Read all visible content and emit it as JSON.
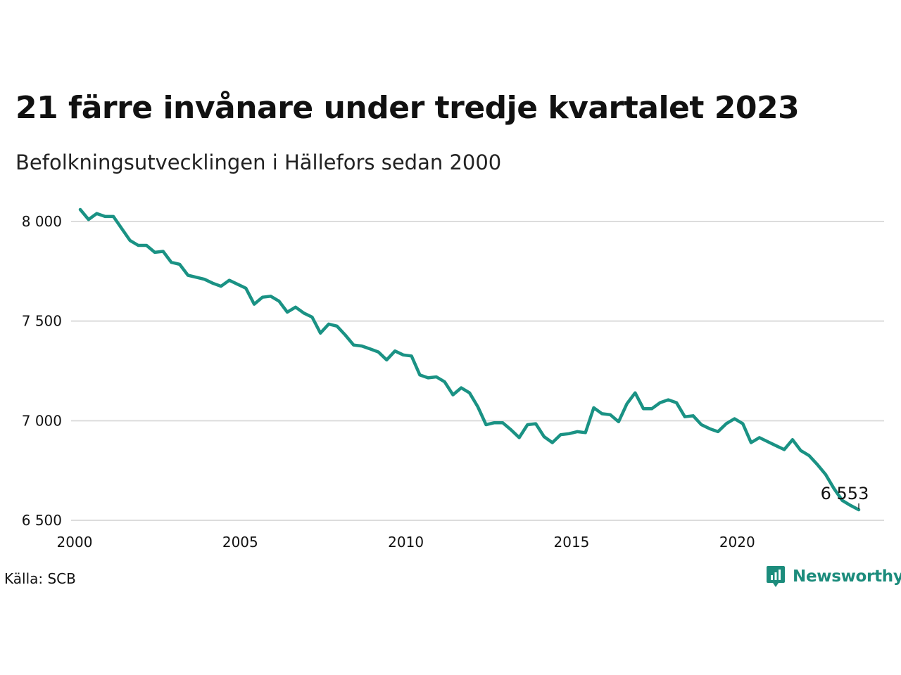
{
  "title": "21 färre invånare under tredje kvartalet 2023",
  "subtitle": "Befolkningsutvecklingen i Hällefors sedan 2000",
  "source": "Källa: SCB",
  "brand": {
    "name": "Newsworthy",
    "icon": "newsworthy-logo-icon",
    "color": "#1c8c7c"
  },
  "colors": {
    "line": "#1a9284",
    "grid": "#dcdcdc"
  },
  "chart_data": {
    "type": "line",
    "title": "21 färre invånare under tredje kvartalet 2023",
    "subtitle": "Befolkningsutvecklingen i Hällefors sedan 2000",
    "xlabel": "",
    "ylabel": "",
    "xlim": [
      2000,
      2024.1
    ],
    "ylim": [
      6500,
      8080
    ],
    "grid": true,
    "legend": "none",
    "x_ticks": [
      2000,
      2005,
      2010,
      2015,
      2020
    ],
    "x_tick_labels": [
      "2000",
      "2005",
      "2010",
      "2015",
      "2020"
    ],
    "y_ticks": [
      6500,
      7000,
      7500,
      8000
    ],
    "y_tick_labels": [
      "6 500",
      "7 000",
      "7 500",
      "8 000"
    ],
    "end_label": "6 553",
    "series": [
      {
        "x": [
          2000.0,
          2000.25,
          2000.5,
          2000.75,
          2001.0,
          2001.25,
          2001.5,
          2001.75,
          2002.0,
          2002.25,
          2002.5,
          2002.75,
          2003.0,
          2003.25,
          2003.5,
          2003.75,
          2004.0,
          2004.25,
          2004.5,
          2004.75,
          2005.0,
          2005.25,
          2005.5,
          2005.75,
          2006.0,
          2006.25,
          2006.5,
          2006.75,
          2007.0,
          2007.25,
          2007.5,
          2007.75,
          2008.0,
          2008.25,
          2008.5,
          2008.75,
          2009.0,
          2009.25,
          2009.5,
          2009.75,
          2010.0,
          2010.25,
          2010.5,
          2010.75,
          2011.0,
          2011.25,
          2011.5,
          2011.75,
          2012.0,
          2012.25,
          2012.5,
          2012.75,
          2013.0,
          2013.25,
          2013.5,
          2013.75,
          2014.0,
          2014.25,
          2014.5,
          2014.75,
          2015.0,
          2015.25,
          2015.5,
          2015.75,
          2016.0,
          2016.25,
          2016.5,
          2016.75,
          2017.0,
          2017.25,
          2017.5,
          2017.75,
          2018.0,
          2018.25,
          2018.5,
          2018.75,
          2019.0,
          2019.25,
          2019.5,
          2019.75,
          2020.0,
          2020.25,
          2020.5,
          2020.75,
          2021.0,
          2021.25,
          2021.5,
          2021.75,
          2022.0,
          2022.25,
          2022.5,
          2022.75,
          2023.0,
          2023.25,
          2023.5
        ],
        "values": [
          8060,
          8010,
          8040,
          8025,
          8025,
          7965,
          7905,
          7880,
          7880,
          7845,
          7850,
          7795,
          7785,
          7730,
          7720,
          7710,
          7690,
          7675,
          7705,
          7685,
          7665,
          7585,
          7620,
          7625,
          7600,
          7545,
          7570,
          7540,
          7520,
          7440,
          7485,
          7475,
          7430,
          7380,
          7375,
          7360,
          7345,
          7305,
          7350,
          7330,
          7325,
          7230,
          7215,
          7220,
          7195,
          7130,
          7165,
          7140,
          7070,
          6980,
          6990,
          6990,
          6955,
          6915,
          6980,
          6985,
          6920,
          6890,
          6930,
          6935,
          6945,
          6940,
          7065,
          7035,
          7030,
          6995,
          7085,
          7140,
          7060,
          7060,
          7090,
          7105,
          7090,
          7020,
          7025,
          6980,
          6960,
          6945,
          6985,
          7010,
          6985,
          6890,
          6915,
          6895,
          6875,
          6855,
          6905,
          6850,
          6825,
          6780,
          6730,
          6660,
          6600,
          6575,
          6553
        ]
      }
    ]
  }
}
